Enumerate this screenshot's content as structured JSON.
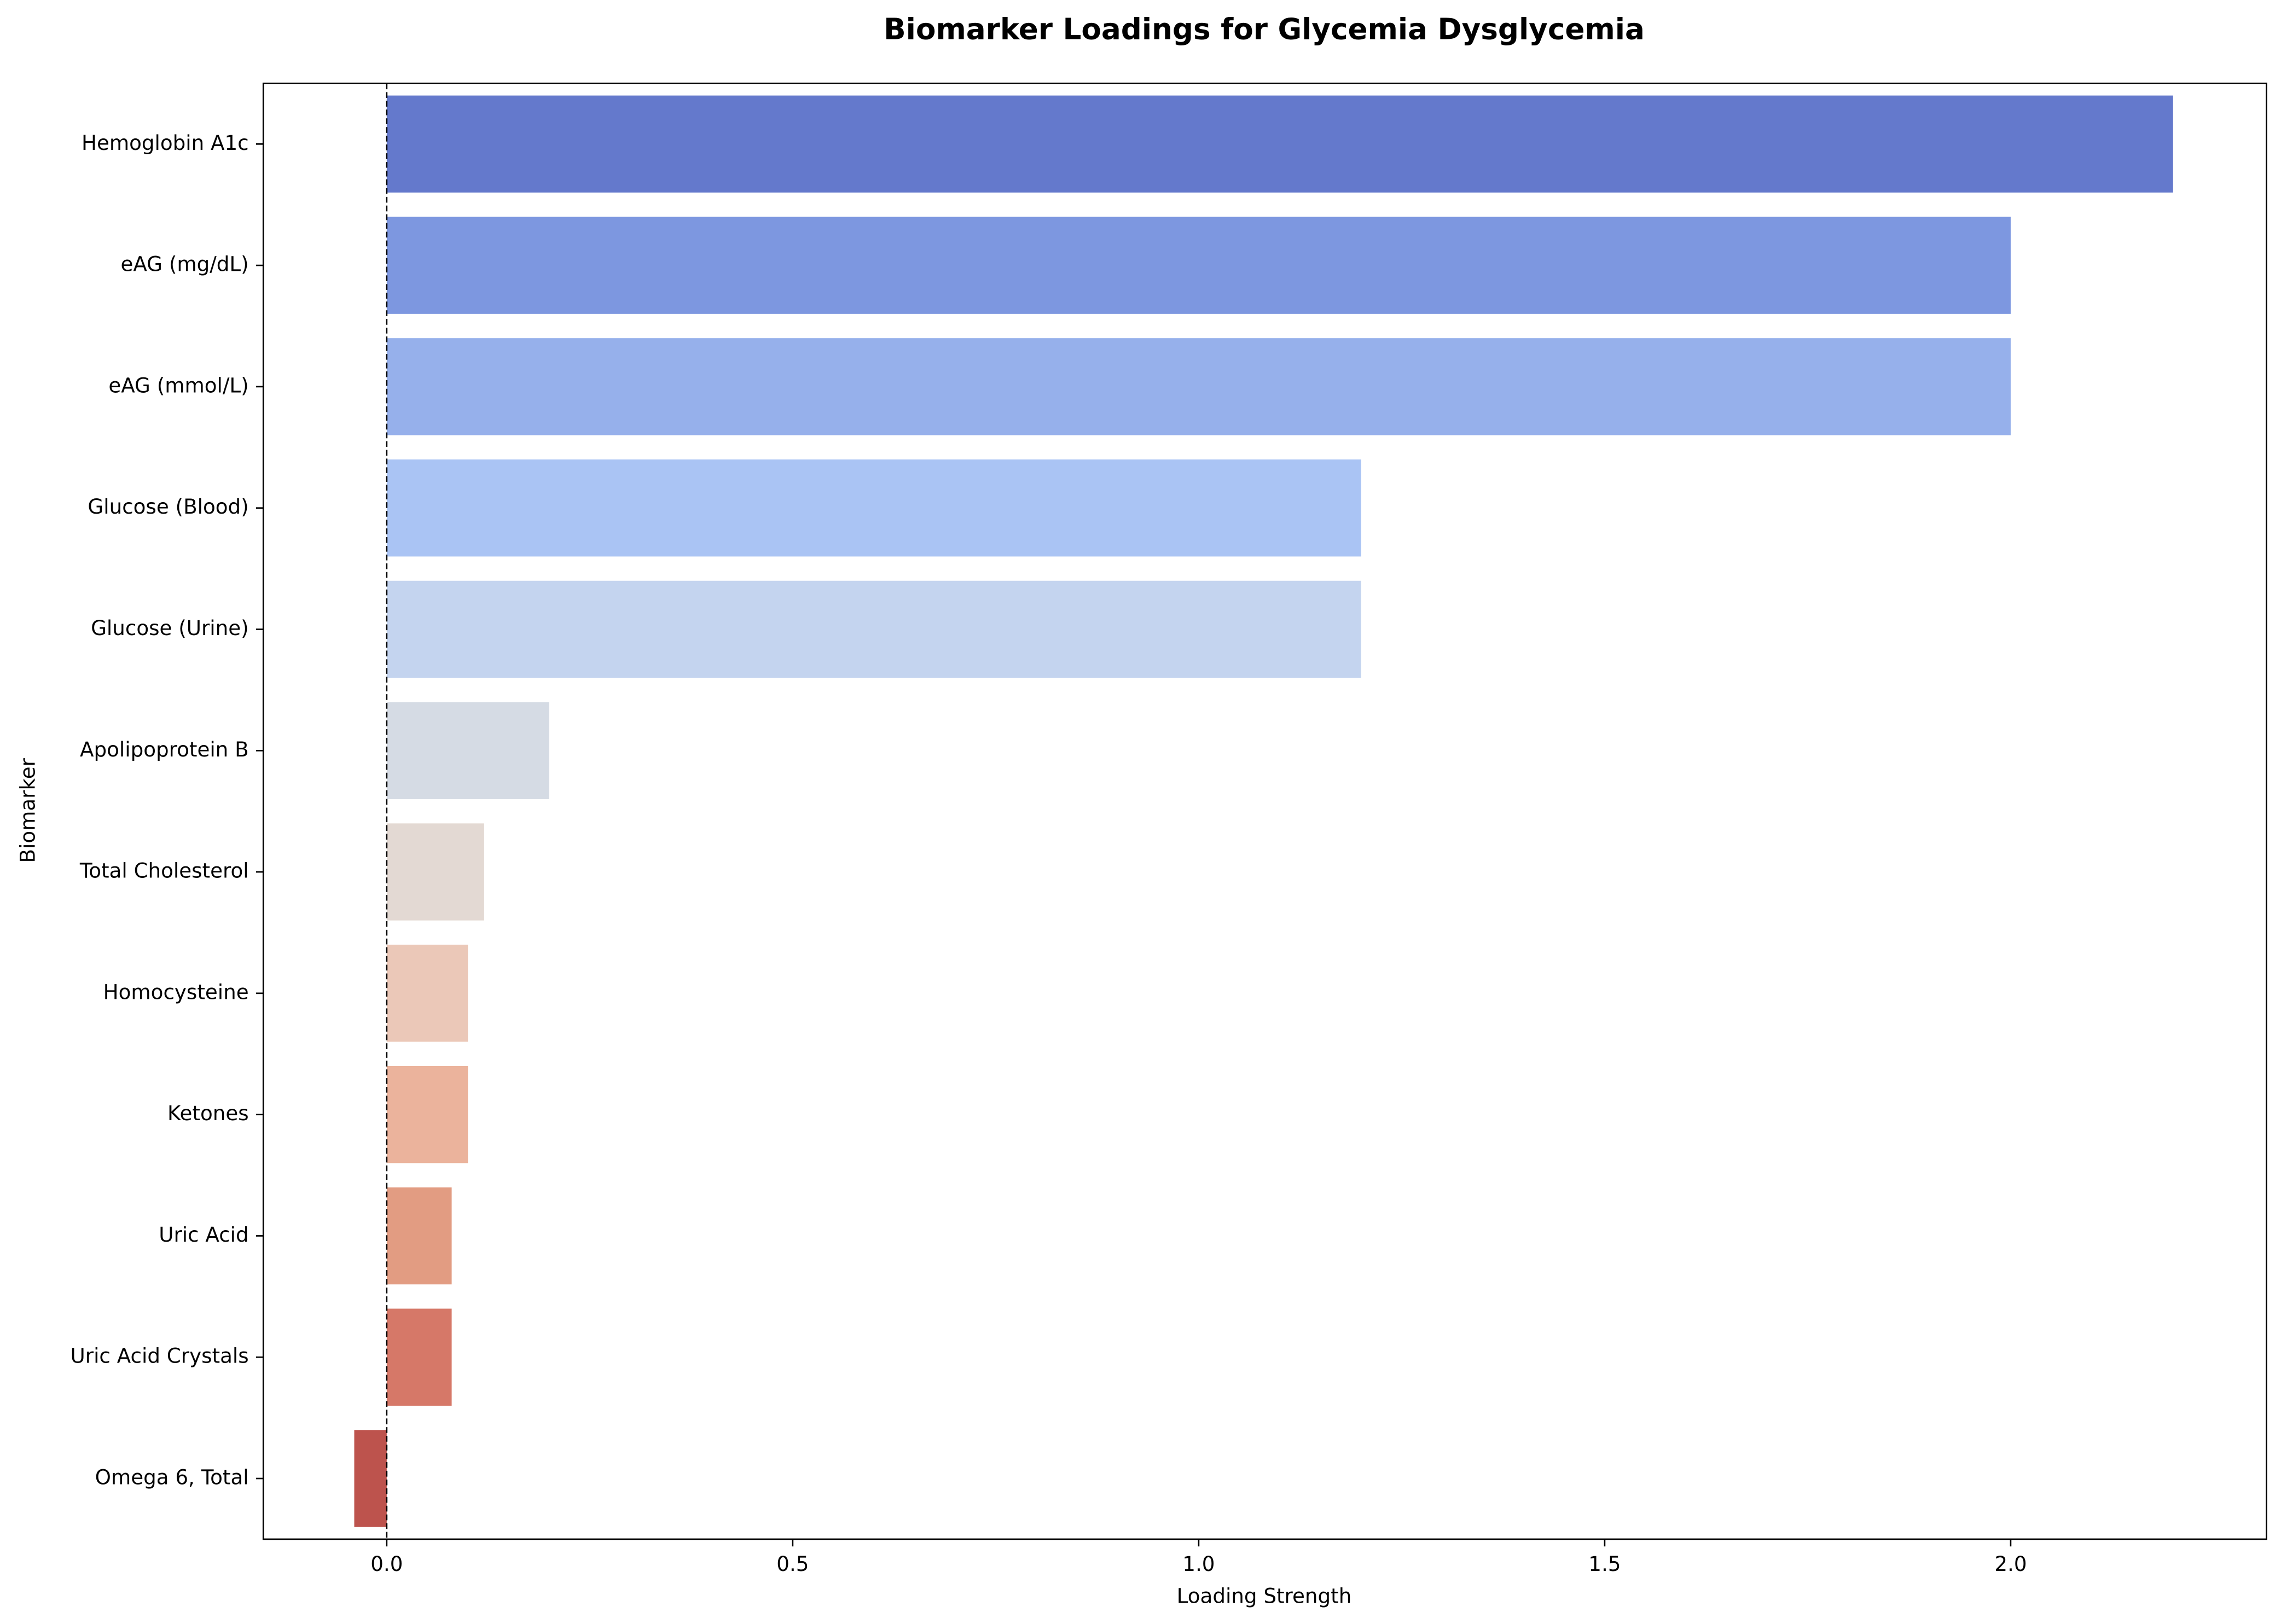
{
  "chart_data": {
    "type": "barh",
    "title": "Biomarker Loadings for Glycemia Dysglycemia",
    "x_label": "Loading Strength",
    "y_label": "Biomarker",
    "categories": [
      "Hemoglobin A1c",
      "eAG (mg/dL)",
      "eAG (mmol/L)",
      "Glucose (Blood)",
      "Glucose (Urine)",
      "Apolipoprotein B",
      "Total Cholesterol",
      "Homocysteine",
      "Ketones",
      "Uric Acid",
      "Uric Acid Crystals",
      "Omega 6, Total"
    ],
    "values": [
      2.2,
      2.0,
      2.0,
      1.2,
      1.2,
      0.2,
      0.12,
      0.1,
      0.1,
      0.08,
      0.08,
      -0.04
    ],
    "colors": [
      "#6479cc",
      "#7d97e0",
      "#96b0eb",
      "#aac4f4",
      "#c4d4ef",
      "#d5dbe4",
      "#e3d9d3",
      "#ebc8b8",
      "#ebb39c",
      "#e29c82",
      "#d67868",
      "#bd534d"
    ],
    "xlim": [
      -0.152,
      2.315
    ],
    "xticks": [
      {
        "value": 0,
        "label": "0.0"
      },
      0.5,
      {
        "value": 1,
        "label": "1.0"
      },
      1.5,
      {
        "value": 2,
        "label": "2.0"
      }
    ],
    "vline": 0
  }
}
